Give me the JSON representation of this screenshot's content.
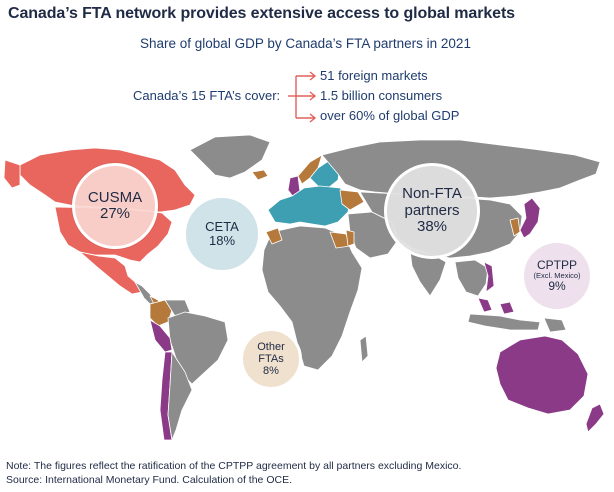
{
  "title": "Canada’s FTA network provides extensive access to global markets",
  "subtitle": "Share of global GDP by Canada’s FTA partners in 2021",
  "cover": {
    "label": "Canada’s 15 FTA’s cover:",
    "items": [
      "51 foreign markets",
      "1.5 billion consumers",
      "over 60% of global GDP"
    ]
  },
  "groups": {
    "cusma": {
      "name": "CUSMA",
      "share": "27%",
      "color": "#e8665e"
    },
    "ceta": {
      "name": "CETA",
      "share": "18%",
      "color": "#3d9fb1"
    },
    "nonfta": {
      "name_line1": "Non-FTA",
      "name_line2": "partners",
      "share": "38%",
      "color": "#8c8c8c"
    },
    "cptpp": {
      "name": "CPTPP",
      "qualifier": "(Excl. Mexico)",
      "share": "9%",
      "color": "#8a3a86"
    },
    "other": {
      "name_line1": "Other",
      "name_line2": "FTAs",
      "share": "8%",
      "color": "#b5793b"
    }
  },
  "notes": {
    "line1": "Note: The figures reflect the ratification of the CPTPP agreement by all partners excluding Mexico.",
    "line2": "Source: International Monetary Fund. Calculation of the OCE."
  }
}
